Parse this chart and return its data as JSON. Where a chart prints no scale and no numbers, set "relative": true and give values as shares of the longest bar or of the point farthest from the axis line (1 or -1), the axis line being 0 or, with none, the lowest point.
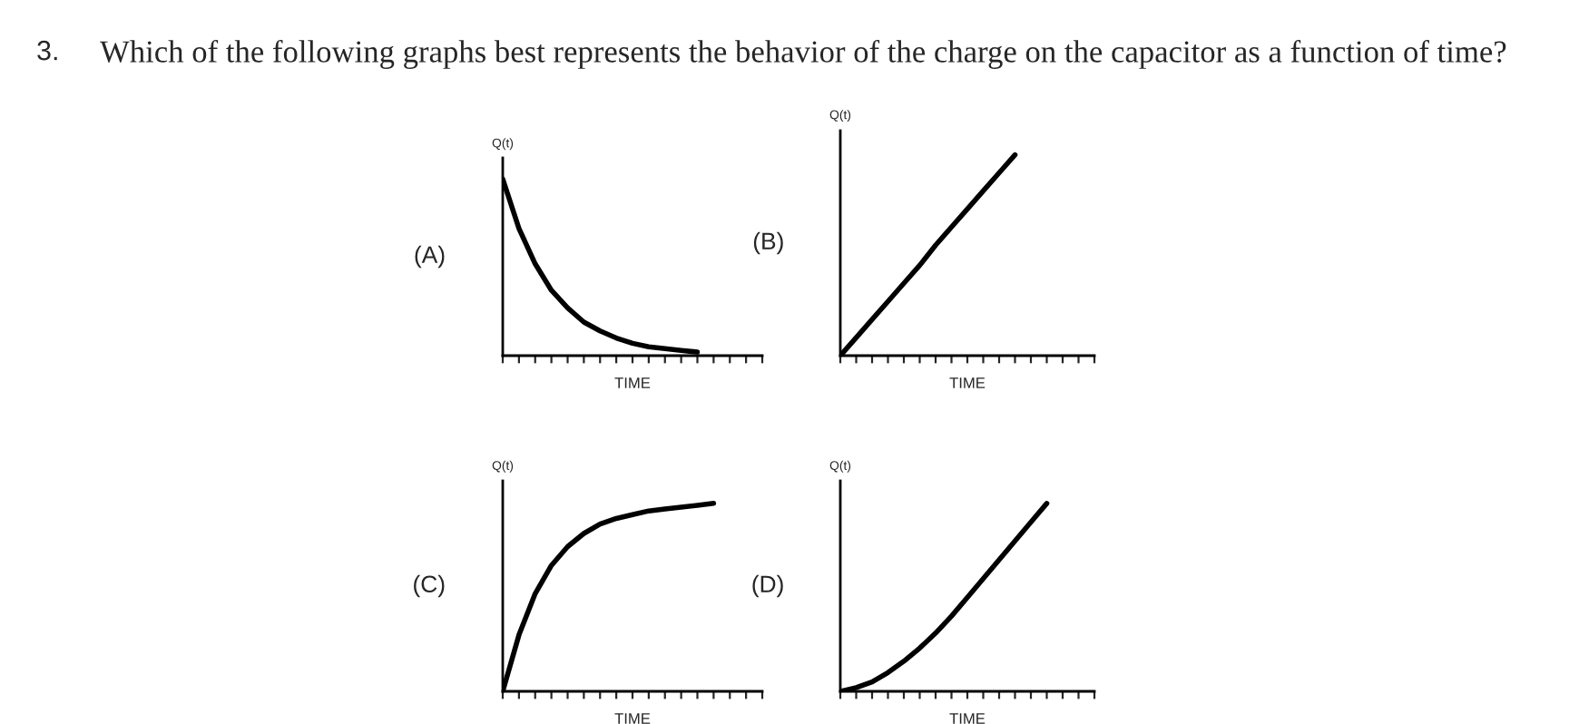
{
  "chart_data": [
    {
      "type": "line",
      "title": "Which of the following graphs best represents the behavior of the charge on the capacitor as a function of time?",
      "annotations": [
        "3.",
        "(A)"
      ],
      "xlabel": "TIME",
      "ylabel": "Q(t)",
      "relative": true,
      "grid": false,
      "line_style": "solid",
      "marker": "none",
      "categories": [
        null,
        null,
        null,
        null,
        null,
        null,
        null,
        null,
        null,
        null,
        null,
        null,
        null,
        null,
        null,
        null,
        null
      ],
      "series": [
        {
          "color": "#000000",
          "values": [
            1,
            0.72,
            0.52,
            0.37,
            0.27,
            0.19,
            0.14,
            0.1,
            0.07,
            0.05,
            0.04,
            0.03,
            0.02,
            null,
            null,
            null,
            null
          ]
        }
      ]
    },
    {
      "type": "line",
      "annotations": [
        "(B)"
      ],
      "xlabel": "TIME",
      "ylabel": "Q(t)",
      "relative": true,
      "grid": false,
      "line_style": "solid",
      "marker": "none",
      "categories": [
        null,
        null,
        null,
        null,
        null,
        null,
        null,
        null,
        null,
        null,
        null,
        null,
        null,
        null,
        null,
        null,
        null
      ],
      "series": [
        {
          "color": "#000000",
          "values": [
            0,
            0.09,
            0.18,
            0.27,
            0.36,
            0.45,
            0.55,
            0.64,
            0.73,
            0.82,
            0.91,
            1,
            null,
            null,
            null,
            null,
            null
          ]
        }
      ]
    },
    {
      "type": "line",
      "annotations": [
        "(C)"
      ],
      "xlabel": "TIME",
      "ylabel": "Q(t)",
      "relative": true,
      "grid": false,
      "line_style": "solid",
      "marker": "none",
      "categories": [
        null,
        null,
        null,
        null,
        null,
        null,
        null,
        null,
        null,
        null,
        null,
        null,
        null,
        null,
        null,
        null,
        null
      ],
      "series": [
        {
          "color": "#000000",
          "values": [
            0,
            0.3,
            0.52,
            0.67,
            0.77,
            0.84,
            0.89,
            0.92,
            0.94,
            0.96,
            0.97,
            0.98,
            0.99,
            1,
            null,
            null,
            null
          ]
        }
      ]
    },
    {
      "type": "line",
      "annotations": [
        "(D)"
      ],
      "xlabel": "TIME",
      "ylabel": "Q(t)",
      "relative": true,
      "grid": false,
      "line_style": "solid",
      "marker": "none",
      "categories": [
        null,
        null,
        null,
        null,
        null,
        null,
        null,
        null,
        null,
        null,
        null,
        null,
        null,
        null,
        null,
        null,
        null
      ],
      "series": [
        {
          "color": "#000000",
          "values": [
            0,
            0.02,
            0.05,
            0.1,
            0.16,
            0.23,
            0.31,
            0.4,
            0.5,
            0.6,
            0.7,
            0.8,
            0.9,
            1,
            null,
            null,
            null
          ]
        }
      ]
    }
  ]
}
